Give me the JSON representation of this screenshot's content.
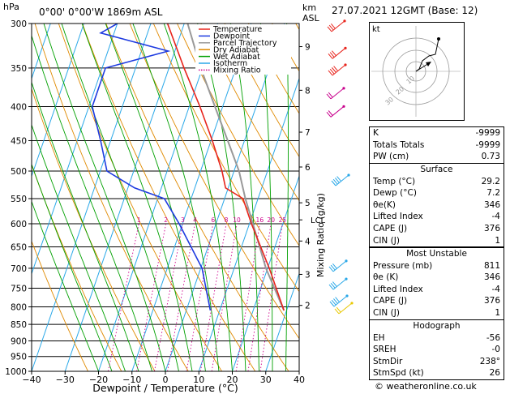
{
  "header": {
    "location": "0°00'  0°00'W  1869m  ASL",
    "datetime": "27.07.2021  12GMT  (Base: 12)",
    "hpa_label": "hPa",
    "km_label": "km",
    "asl_label": "ASL"
  },
  "chart_data": {
    "type": "line",
    "xlabel": "Dewpoint / Temperature (°C)",
    "ylabel": "",
    "right_label": "Mixing Ratio (g/kg)",
    "x_ticks": [
      -40,
      -30,
      -20,
      -10,
      0,
      10,
      20,
      30,
      40
    ],
    "x_tick_labels": [
      "−40",
      "−30",
      "−20",
      "−10",
      "0",
      "10",
      "20",
      "30",
      "40"
    ],
    "pressure_levels": [
      300,
      350,
      400,
      450,
      500,
      550,
      600,
      650,
      700,
      750,
      800,
      850,
      900,
      950,
      1000
    ],
    "pressure_labels": [
      "300",
      "350",
      "400",
      "450",
      "500",
      "550",
      "600",
      "650",
      "700",
      "750",
      "800",
      "850",
      "900",
      "950",
      "1000"
    ],
    "km_ticks": [
      {
        "km": 9,
        "p": 325,
        "label": "9"
      },
      {
        "km": 8,
        "p": 378,
        "label": "8"
      },
      {
        "km": 7,
        "p": 437,
        "label": "7"
      },
      {
        "km": 6,
        "p": 493,
        "label": "6"
      },
      {
        "km": 5,
        "p": 558,
        "label": "5"
      },
      {
        "km": 4,
        "p": 637,
        "label": "4"
      },
      {
        "km": 3,
        "p": 715,
        "label": "3"
      },
      {
        "km": 2,
        "p": 796,
        "label": "2"
      }
    ],
    "lcl": {
      "p": 592,
      "label": "LCL"
    },
    "mixing_ratio_values": [
      1,
      2,
      3,
      4,
      6,
      8,
      10,
      16,
      20,
      25
    ],
    "mixing_ratio_labels": [
      "1",
      "2",
      "3",
      "4",
      "6",
      "8",
      "10",
      "16",
      "20",
      "25"
    ],
    "legend": [
      {
        "name": "Temperature",
        "color": "#e8241c"
      },
      {
        "name": "Dewpoint",
        "color": "#1d3ae0"
      },
      {
        "name": "Parcel Trajectory",
        "color": "#999999"
      },
      {
        "name": "Dry Adiabat",
        "color": "#e08a00"
      },
      {
        "name": "Wet Adiabat",
        "color": "#00a000"
      },
      {
        "name": "Isotherm",
        "color": "#2aa8e8"
      },
      {
        "name": "Mixing Ratio",
        "color": "#d0008c"
      }
    ],
    "series": [
      {
        "name": "Temperature",
        "color": "#e8241c",
        "points": [
          [
            810,
            29.2
          ],
          [
            700,
            20.5
          ],
          [
            600,
            10.6
          ],
          [
            550,
            5.5
          ],
          [
            530,
            -0.8
          ],
          [
            500,
            -3.6
          ],
          [
            450,
            -9.6
          ],
          [
            400,
            -16.8
          ],
          [
            350,
            -25.5
          ],
          [
            300,
            -35
          ]
        ]
      },
      {
        "name": "Dewpoint",
        "color": "#1d3ae0",
        "points": [
          [
            810,
            7.2
          ],
          [
            700,
            0.4
          ],
          [
            600,
            -11
          ],
          [
            550,
            -18
          ],
          [
            530,
            -28
          ],
          [
            500,
            -38
          ],
          [
            450,
            -43
          ],
          [
            400,
            -49
          ],
          [
            350,
            -49
          ],
          [
            330,
            -32
          ],
          [
            310,
            -54
          ],
          [
            300,
            -50
          ]
        ]
      },
      {
        "name": "Parcel Trajectory",
        "color": "#999999",
        "points": [
          [
            810,
            29.2
          ],
          [
            700,
            19.5
          ],
          [
            592,
            10.3
          ],
          [
            550,
            6.2
          ],
          [
            500,
            1.5
          ],
          [
            450,
            -5
          ],
          [
            400,
            -12.3
          ],
          [
            350,
            -20.5
          ],
          [
            300,
            -29
          ]
        ]
      }
    ]
  },
  "hodograph": {
    "unit_label": "kt",
    "ring_labels": [
      "10",
      "20",
      "30"
    ]
  },
  "indices": {
    "rows": [
      {
        "label": "K",
        "value": "-9999"
      },
      {
        "label": "Totals Totals",
        "value": "-9999"
      },
      {
        "label": "PW (cm)",
        "value": "0.73"
      }
    ]
  },
  "surface": {
    "title": "Surface",
    "rows": [
      {
        "label": "Temp (°C)",
        "value": "29.2"
      },
      {
        "label": "Dewp (°C)",
        "value": "7.2"
      },
      {
        "label": "θe(K)",
        "value": "346"
      },
      {
        "label": "Lifted Index",
        "value": "-4"
      },
      {
        "label": "CAPE (J)",
        "value": "376"
      },
      {
        "label": "CIN (J)",
        "value": "1"
      }
    ]
  },
  "most_unstable": {
    "title": "Most Unstable",
    "rows": [
      {
        "label": "Pressure (mb)",
        "value": "811"
      },
      {
        "label": "θe (K)",
        "value": "346"
      },
      {
        "label": "Lifted Index",
        "value": "-4"
      },
      {
        "label": "CAPE (J)",
        "value": "376"
      },
      {
        "label": "CIN (J)",
        "value": "1"
      }
    ]
  },
  "hodograph_table": {
    "title": "Hodograph",
    "rows": [
      {
        "label": "EH",
        "value": "-56"
      },
      {
        "label": "SREH",
        "value": "-0"
      },
      {
        "label": "StmDir",
        "value": "238°"
      },
      {
        "label": "StmSpd (kt)",
        "value": "26"
      }
    ]
  },
  "footer": {
    "copyright": "© weatheronline.co.uk"
  }
}
